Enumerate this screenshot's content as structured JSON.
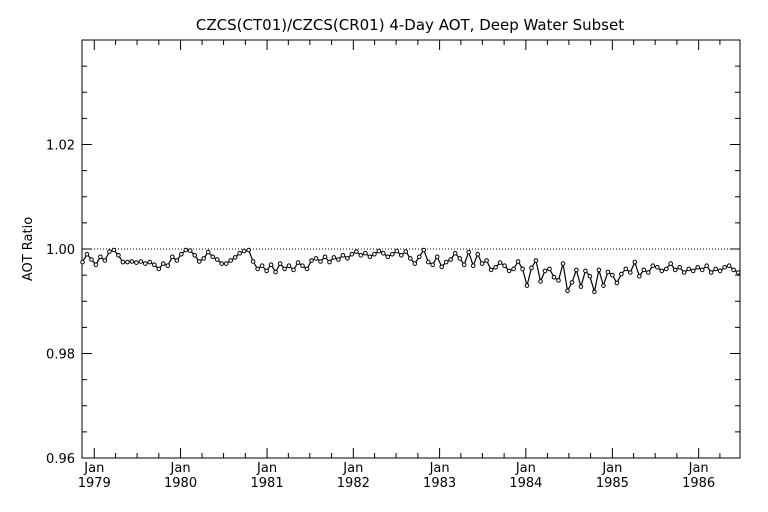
{
  "chart_data": {
    "type": "line",
    "title": "CZCS(CT01)/CZCS(CR01) 4-Day AOT, Deep Water Subset",
    "xlabel": "",
    "ylabel": "AOT Ratio",
    "ylim": [
      0.96,
      1.04
    ],
    "xlim": [
      "1978-11-10",
      "1986-06-25"
    ],
    "y_ticks": [
      "0.96",
      "0.98",
      "1.00",
      "1.02"
    ],
    "x_ticks": [
      {
        "month": "Jan",
        "year": "1979",
        "date": "1979-01-01"
      },
      {
        "month": "Jan",
        "year": "1980",
        "date": "1980-01-01"
      },
      {
        "month": "Jan",
        "year": "1981",
        "date": "1981-01-01"
      },
      {
        "month": "Jan",
        "year": "1982",
        "date": "1982-01-01"
      },
      {
        "month": "Jan",
        "year": "1983",
        "date": "1983-01-01"
      },
      {
        "month": "Jan",
        "year": "1984",
        "date": "1984-01-01"
      },
      {
        "month": "Jan",
        "year": "1985",
        "date": "1985-01-01"
      },
      {
        "month": "Jan",
        "year": "1986",
        "date": "1986-01-01"
      }
    ],
    "reference_line": {
      "y": 1.0,
      "style": "dotted"
    },
    "grid": false,
    "series": [
      {
        "marker": "circle",
        "color": "#000000",
        "x": [
          "1978-11-12",
          "1978-12-01",
          "1978-12-20",
          "1979-01-08",
          "1979-01-27",
          "1979-02-15",
          "1979-03-06",
          "1979-03-25",
          "1979-04-13",
          "1979-05-02",
          "1979-05-21",
          "1979-06-09",
          "1979-06-28",
          "1979-07-17",
          "1979-08-05",
          "1979-08-24",
          "1979-09-12",
          "1979-10-01",
          "1979-10-20",
          "1979-11-08",
          "1979-11-27",
          "1979-12-16",
          "1980-01-04",
          "1980-01-23",
          "1980-02-11",
          "1980-03-01",
          "1980-03-20",
          "1980-04-08",
          "1980-04-27",
          "1980-05-16",
          "1980-06-04",
          "1980-06-23",
          "1980-07-12",
          "1980-07-31",
          "1980-08-19",
          "1980-09-07",
          "1980-09-26",
          "1980-10-15",
          "1980-11-03",
          "1980-11-22",
          "1980-12-11",
          "1980-12-30",
          "1981-01-18",
          "1981-02-06",
          "1981-02-25",
          "1981-03-16",
          "1981-04-04",
          "1981-04-23",
          "1981-05-12",
          "1981-05-31",
          "1981-06-19",
          "1981-07-08",
          "1981-07-27",
          "1981-08-15",
          "1981-09-03",
          "1981-09-22",
          "1981-10-11",
          "1981-10-30",
          "1981-11-18",
          "1981-12-07",
          "1981-12-26",
          "1982-01-14",
          "1982-02-02",
          "1982-02-21",
          "1982-03-12",
          "1982-03-31",
          "1982-04-19",
          "1982-05-08",
          "1982-05-27",
          "1982-06-15",
          "1982-07-04",
          "1982-07-23",
          "1982-08-11",
          "1982-08-30",
          "1982-09-18",
          "1982-10-07",
          "1982-10-26",
          "1982-11-14",
          "1982-12-03",
          "1982-12-22",
          "1983-01-10",
          "1983-01-29",
          "1983-02-17",
          "1983-03-08",
          "1983-03-27",
          "1983-04-15",
          "1983-05-04",
          "1983-05-23",
          "1983-06-11",
          "1983-06-30",
          "1983-07-19",
          "1983-08-07",
          "1983-08-26",
          "1983-09-14",
          "1983-10-03",
          "1983-10-22",
          "1983-11-10",
          "1983-11-29",
          "1983-12-18",
          "1984-01-06",
          "1984-01-25",
          "1984-02-13",
          "1984-03-03",
          "1984-03-22",
          "1984-04-10",
          "1984-04-29",
          "1984-05-18",
          "1984-06-06",
          "1984-06-25",
          "1984-07-14",
          "1984-08-02",
          "1984-08-21",
          "1984-09-09",
          "1984-09-28",
          "1984-10-17",
          "1984-11-05",
          "1984-11-24",
          "1984-12-13",
          "1985-01-01",
          "1985-01-20",
          "1985-02-08",
          "1985-02-27",
          "1985-03-18",
          "1985-04-06",
          "1985-04-25",
          "1985-05-14",
          "1985-06-02",
          "1985-06-21",
          "1985-07-10",
          "1985-07-29",
          "1985-08-17",
          "1985-09-05",
          "1985-09-24",
          "1985-10-13",
          "1985-11-01",
          "1985-11-20",
          "1985-12-09",
          "1985-12-28",
          "1986-01-16",
          "1986-02-04",
          "1986-02-23",
          "1986-03-14",
          "1986-04-02",
          "1986-04-21",
          "1986-05-10",
          "1986-05-29",
          "1986-06-17"
        ],
        "y": [
          0.9975,
          0.999,
          0.998,
          0.997,
          0.9985,
          0.9978,
          0.9995,
          0.9998,
          0.9988,
          0.9975,
          0.9975,
          0.9976,
          0.9974,
          0.9976,
          0.9972,
          0.9975,
          0.997,
          0.9962,
          0.9972,
          0.9968,
          0.9985,
          0.9978,
          0.999,
          0.9998,
          0.9997,
          0.9988,
          0.9976,
          0.9982,
          0.9994,
          0.9985,
          0.998,
          0.9972,
          0.9972,
          0.9978,
          0.9984,
          0.9992,
          0.9996,
          0.9998,
          0.9976,
          0.9962,
          0.9968,
          0.9958,
          0.997,
          0.9956,
          0.9972,
          0.9962,
          0.9968,
          0.996,
          0.9974,
          0.9968,
          0.9962,
          0.9978,
          0.9982,
          0.9976,
          0.9985,
          0.9975,
          0.9984,
          0.998,
          0.9988,
          0.9982,
          0.999,
          0.9995,
          0.9988,
          0.9992,
          0.9985,
          0.999,
          0.9996,
          0.9992,
          0.9985,
          0.999,
          0.9996,
          0.9988,
          0.9995,
          0.9982,
          0.9972,
          0.9985,
          0.9998,
          0.9975,
          0.997,
          0.9985,
          0.9966,
          0.9975,
          0.998,
          0.9992,
          0.9982,
          0.997,
          0.9994,
          0.9968,
          0.999,
          0.9972,
          0.9978,
          0.996,
          0.9965,
          0.9974,
          0.9968,
          0.9958,
          0.9962,
          0.9976,
          0.9962,
          0.993,
          0.9964,
          0.9978,
          0.9938,
          0.9958,
          0.9962,
          0.9946,
          0.994,
          0.9972,
          0.992,
          0.9936,
          0.996,
          0.9928,
          0.9958,
          0.9948,
          0.9918,
          0.996,
          0.993,
          0.9956,
          0.995,
          0.9935,
          0.9952,
          0.9962,
          0.9955,
          0.9975,
          0.9948,
          0.996,
          0.9955,
          0.9968,
          0.9965,
          0.9958,
          0.9962,
          0.9972,
          0.996,
          0.9965,
          0.9955,
          0.9962,
          0.9958,
          0.9965,
          0.996,
          0.9968,
          0.9955,
          0.9962,
          0.9958,
          0.9965,
          0.9968,
          0.996,
          0.9955
        ]
      }
    ]
  }
}
